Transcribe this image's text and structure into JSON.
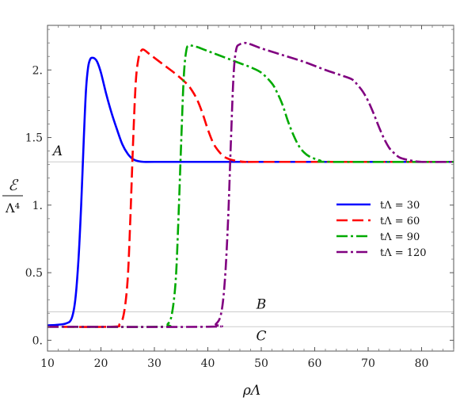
{
  "chart_data": {
    "type": "line",
    "xlabel": "ρΛ",
    "ylabel_num": "ℰ",
    "ylabel_den": "Λ⁴",
    "xlim": [
      10,
      86
    ],
    "ylim": [
      -0.08,
      2.33
    ],
    "xticks": [
      10,
      20,
      30,
      40,
      50,
      60,
      70,
      80
    ],
    "xtick_labels": [
      "10",
      "20",
      "30",
      "40",
      "50",
      "60",
      "70",
      "80"
    ],
    "yticks": [
      0.0,
      0.5,
      1.0,
      1.5,
      2.0
    ],
    "ytick_labels": [
      "0.",
      "0.5",
      "1.",
      "1.5",
      "2."
    ],
    "grid": false,
    "legend_position": "right-middle",
    "reference_lines": [
      {
        "label": "A",
        "y": 1.32
      },
      {
        "label": "B",
        "y": 0.21
      },
      {
        "label": "C",
        "y": 0.1
      }
    ],
    "series": [
      {
        "name": "tΛ = 30",
        "color": "#0000ff",
        "dash": "solid",
        "x": [
          10,
          12,
          13.5,
          14.5,
          15.2,
          15.8,
          16.3,
          16.8,
          17.2,
          17.6,
          18.0,
          18.4,
          18.8,
          19.3,
          20,
          21,
          22,
          23,
          24,
          25,
          26,
          27,
          28,
          30,
          40,
          60,
          86
        ],
        "y": [
          0.11,
          0.115,
          0.125,
          0.16,
          0.3,
          0.6,
          1.0,
          1.5,
          1.85,
          2.02,
          2.08,
          2.09,
          2.085,
          2.06,
          1.98,
          1.82,
          1.68,
          1.56,
          1.45,
          1.38,
          1.34,
          1.325,
          1.32,
          1.32,
          1.32,
          1.32,
          1.32
        ]
      },
      {
        "name": "tΛ = 60",
        "color": "#ff0000",
        "dash": "dashed",
        "x": [
          10,
          22,
          23.5,
          24.3,
          25,
          25.5,
          26,
          26.5,
          27,
          27.5,
          28,
          29,
          30,
          32,
          34,
          36,
          37,
          38,
          39,
          40,
          41,
          42,
          43,
          44,
          45,
          47,
          50,
          86
        ],
        "y": [
          0.1,
          0.1,
          0.12,
          0.2,
          0.45,
          0.9,
          1.45,
          1.9,
          2.08,
          2.14,
          2.15,
          2.12,
          2.09,
          2.03,
          1.97,
          1.9,
          1.85,
          1.78,
          1.68,
          1.56,
          1.46,
          1.4,
          1.36,
          1.34,
          1.33,
          1.32,
          1.32,
          1.32
        ]
      },
      {
        "name": "tΛ = 90",
        "color": "#00aa00",
        "dash": "dashdot",
        "x": [
          10,
          31,
          32.5,
          33.3,
          34,
          34.5,
          35,
          35.5,
          36,
          36.5,
          37,
          38,
          40,
          42,
          44,
          46,
          48,
          50,
          52,
          53,
          54,
          55,
          56,
          57,
          58,
          59,
          61,
          63,
          86
        ],
        "y": [
          0.1,
          0.1,
          0.12,
          0.2,
          0.45,
          0.9,
          1.45,
          1.95,
          2.15,
          2.18,
          2.18,
          2.17,
          2.14,
          2.11,
          2.08,
          2.05,
          2.02,
          1.98,
          1.9,
          1.83,
          1.74,
          1.62,
          1.52,
          1.44,
          1.39,
          1.36,
          1.33,
          1.32,
          1.32
        ]
      },
      {
        "name": "tΛ = 120",
        "color": "#800080",
        "dash": "dashdot",
        "x": [
          10,
          40,
          41.5,
          42.5,
          43.2,
          43.8,
          44.3,
          44.8,
          45.3,
          46,
          47,
          48,
          50,
          54,
          58,
          62,
          65,
          67,
          68,
          69,
          70,
          71,
          72,
          73,
          74,
          75,
          76,
          78,
          80,
          86
        ],
        "y": [
          0.1,
          0.1,
          0.12,
          0.2,
          0.45,
          0.9,
          1.45,
          1.95,
          2.15,
          2.19,
          2.2,
          2.19,
          2.16,
          2.11,
          2.06,
          2.0,
          1.96,
          1.93,
          1.89,
          1.84,
          1.77,
          1.68,
          1.58,
          1.49,
          1.42,
          1.38,
          1.35,
          1.33,
          1.32,
          1.32
        ]
      }
    ]
  }
}
